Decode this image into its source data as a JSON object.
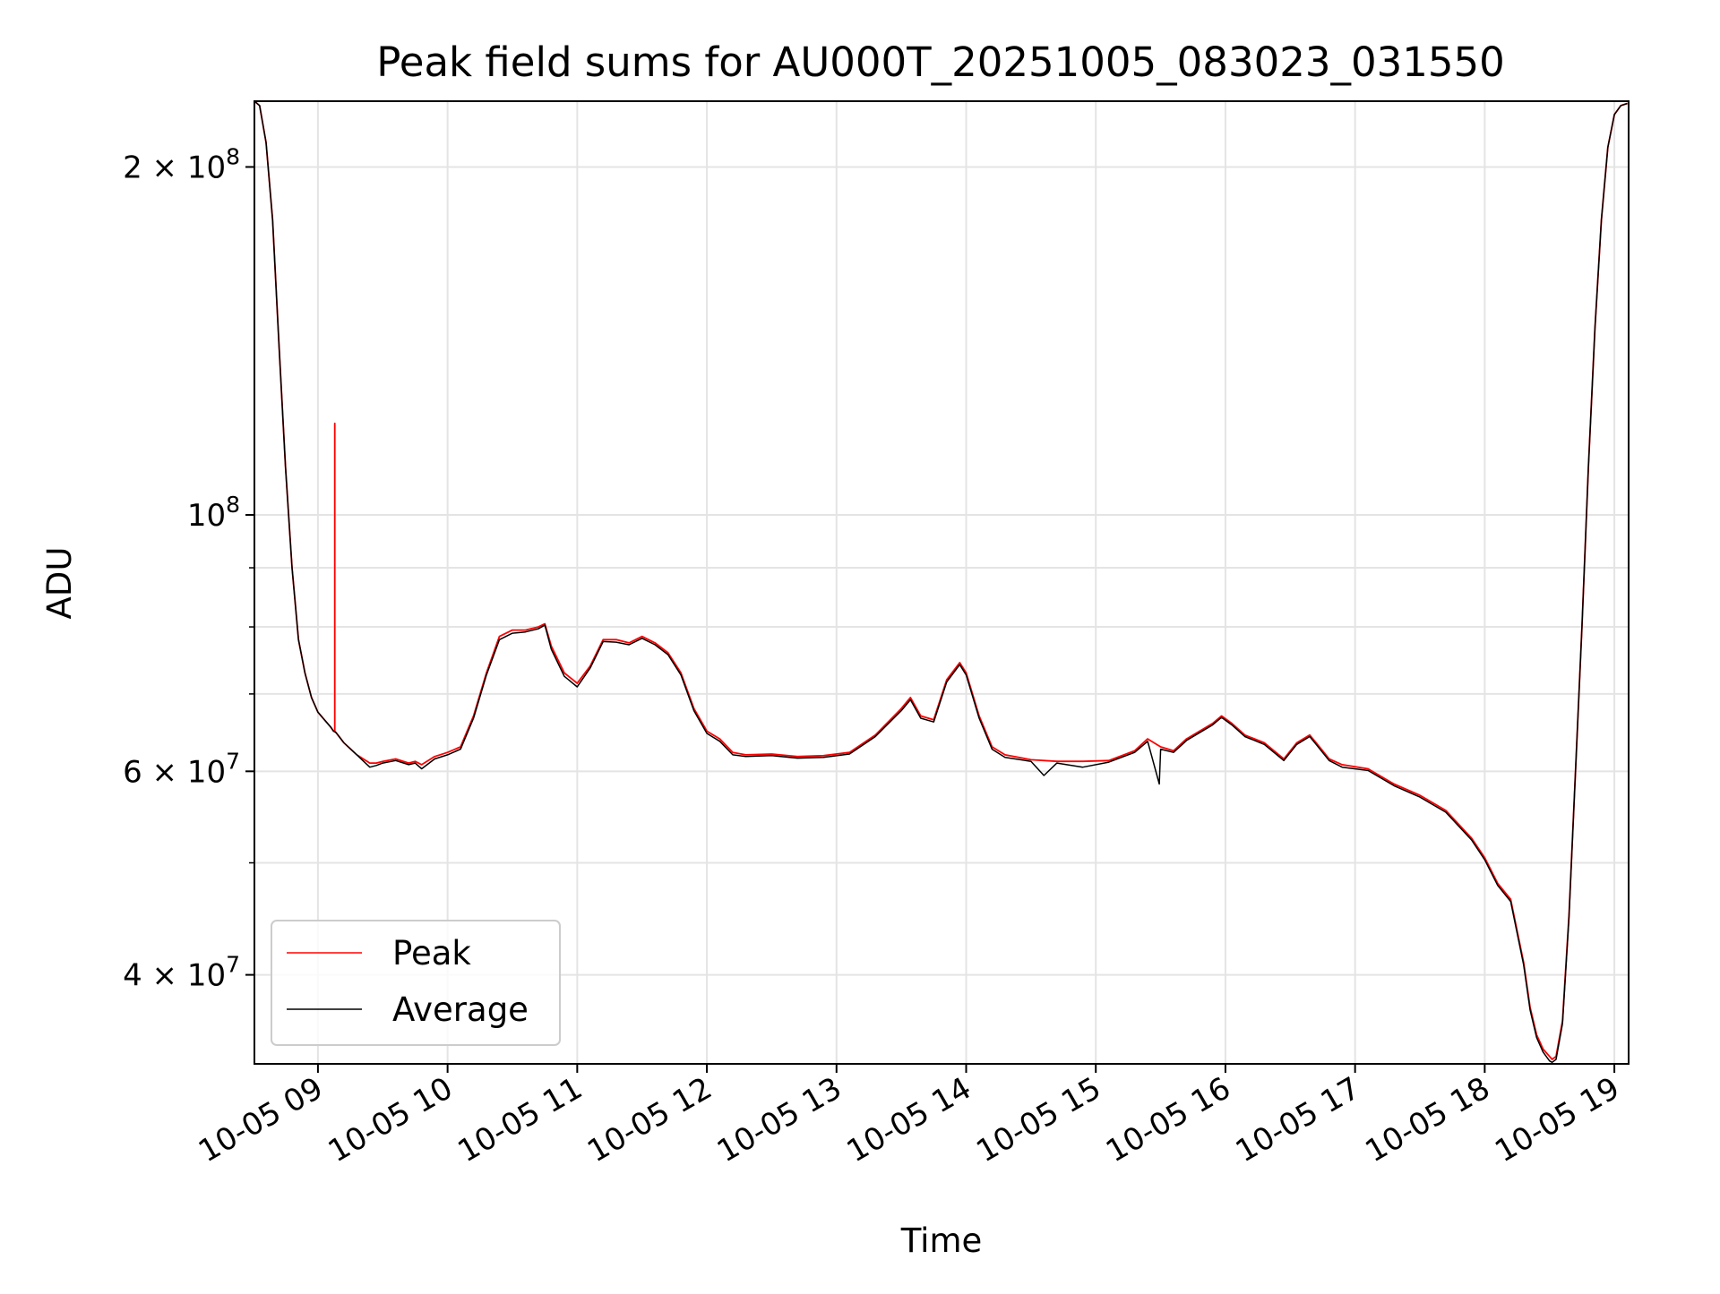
{
  "chart_data": {
    "type": "line",
    "title": "Peak field sums for AU000T_20251005_083023_031550",
    "xlabel": "Time",
    "ylabel": "ADU",
    "y_scale": "log",
    "ylim": [
      33500000,
      228000000
    ],
    "x_unit": "hour of 2025-10-05",
    "xlim": [
      8.51,
      19.11
    ],
    "x_ticks": [
      {
        "value": 9,
        "label": "10-05 09"
      },
      {
        "value": 10,
        "label": "10-05 10"
      },
      {
        "value": 11,
        "label": "10-05 11"
      },
      {
        "value": 12,
        "label": "10-05 12"
      },
      {
        "value": 13,
        "label": "10-05 13"
      },
      {
        "value": 14,
        "label": "10-05 14"
      },
      {
        "value": 15,
        "label": "10-05 15"
      },
      {
        "value": 16,
        "label": "10-05 16"
      },
      {
        "value": 17,
        "label": "10-05 17"
      },
      {
        "value": 18,
        "label": "10-05 18"
      },
      {
        "value": 19,
        "label": "10-05 19"
      }
    ],
    "y_major_ticks": [
      {
        "value": 40000000,
        "mant": "4",
        "exp": "7"
      },
      {
        "value": 60000000,
        "mant": "6",
        "exp": "7"
      },
      {
        "value": 100000000,
        "mant": "",
        "exp": "8"
      },
      {
        "value": 200000000,
        "mant": "2",
        "exp": "8"
      }
    ],
    "y_minor_ticks": [
      50000000,
      70000000,
      80000000,
      90000000
    ],
    "grid": true,
    "legend_position": "lower-left",
    "series": [
      {
        "name": "Peak",
        "color": "#ff0000",
        "x": [
          8.51,
          8.55,
          8.6,
          8.65,
          8.7,
          8.75,
          8.8,
          8.85,
          8.9,
          8.95,
          9.0,
          9.05,
          9.1,
          9.12,
          9.13,
          9.13,
          9.13,
          9.14,
          9.2,
          9.3,
          9.4,
          9.45,
          9.5,
          9.6,
          9.7,
          9.75,
          9.8,
          9.9,
          10.0,
          10.1,
          10.2,
          10.3,
          10.4,
          10.5,
          10.6,
          10.7,
          10.75,
          10.8,
          10.9,
          11.0,
          11.1,
          11.2,
          11.3,
          11.4,
          11.5,
          11.6,
          11.7,
          11.8,
          11.9,
          12.0,
          12.1,
          12.2,
          12.3,
          12.5,
          12.7,
          12.9,
          13.1,
          13.3,
          13.5,
          13.57,
          13.65,
          13.75,
          13.85,
          13.95,
          14.0,
          14.1,
          14.2,
          14.3,
          14.5,
          14.7,
          14.9,
          15.1,
          15.3,
          15.4,
          15.5,
          15.6,
          15.7,
          15.8,
          15.9,
          15.97,
          16.05,
          16.15,
          16.3,
          16.45,
          16.55,
          16.65,
          16.7,
          16.8,
          16.9,
          17.1,
          17.3,
          17.5,
          17.7,
          17.9,
          18.0,
          18.1,
          18.2,
          18.3,
          18.35,
          18.4,
          18.45,
          18.5,
          18.52,
          18.55,
          18.6,
          18.65,
          18.7,
          18.75,
          18.8,
          18.85,
          18.9,
          18.95,
          19.0,
          19.05,
          19.1
        ],
        "y": [
          228000000,
          226000000,
          210000000,
          180000000,
          140000000,
          110000000,
          90000000,
          78000000,
          73000000,
          69500000,
          67500000,
          66500000,
          65500000,
          65000000,
          65000000,
          120000000,
          65000000,
          64800000,
          63500000,
          62000000,
          61000000,
          61000000,
          61200000,
          61500000,
          61000000,
          61200000,
          60800000,
          61800000,
          62300000,
          63000000,
          67000000,
          73000000,
          78500000,
          79500000,
          79500000,
          80000000,
          80500000,
          77000000,
          73000000,
          71500000,
          74000000,
          78000000,
          78000000,
          77500000,
          78500000,
          77500000,
          76000000,
          73000000,
          68000000,
          65000000,
          64000000,
          62300000,
          62000000,
          62100000,
          61800000,
          61900000,
          62300000,
          64500000,
          68000000,
          69500000,
          67000000,
          66500000,
          72000000,
          74500000,
          73000000,
          67000000,
          63000000,
          62000000,
          61400000,
          61200000,
          61200000,
          61300000,
          62500000,
          64000000,
          63000000,
          62500000,
          64000000,
          65000000,
          66000000,
          67000000,
          66000000,
          64500000,
          63500000,
          61500000,
          63500000,
          64500000,
          63500000,
          61500000,
          60800000,
          60300000,
          58500000,
          57200000,
          55500000,
          52500000,
          50500000,
          48000000,
          46500000,
          41000000,
          37500000,
          35500000,
          34500000,
          34000000,
          33800000,
          34000000,
          36500000,
          45000000,
          60000000,
          80000000,
          110000000,
          145000000,
          180000000,
          208000000,
          222000000,
          226000000,
          227000000
        ]
      },
      {
        "name": "Average",
        "color": "#000000",
        "x": [
          8.51,
          8.55,
          8.6,
          8.65,
          8.7,
          8.75,
          8.8,
          8.85,
          8.9,
          8.95,
          9.0,
          9.05,
          9.1,
          9.12,
          9.14,
          9.2,
          9.3,
          9.4,
          9.45,
          9.5,
          9.6,
          9.7,
          9.75,
          9.8,
          9.9,
          10.0,
          10.1,
          10.2,
          10.3,
          10.4,
          10.5,
          10.6,
          10.7,
          10.75,
          10.8,
          10.9,
          11.0,
          11.1,
          11.2,
          11.3,
          11.4,
          11.5,
          11.6,
          11.7,
          11.8,
          11.9,
          12.0,
          12.1,
          12.2,
          12.3,
          12.5,
          12.7,
          12.9,
          13.1,
          13.3,
          13.5,
          13.57,
          13.65,
          13.75,
          13.85,
          13.95,
          14.0,
          14.1,
          14.2,
          14.3,
          14.5,
          14.6,
          14.7,
          14.9,
          15.1,
          15.3,
          15.4,
          15.49,
          15.5,
          15.6,
          15.7,
          15.8,
          15.9,
          15.97,
          16.05,
          16.15,
          16.3,
          16.45,
          16.55,
          16.65,
          16.7,
          16.8,
          16.9,
          17.1,
          17.3,
          17.5,
          17.7,
          17.9,
          18.0,
          18.1,
          18.2,
          18.3,
          18.35,
          18.4,
          18.45,
          18.5,
          18.52,
          18.55,
          18.6,
          18.65,
          18.7,
          18.75,
          18.8,
          18.85,
          18.9,
          18.95,
          19.0,
          19.05,
          19.1
        ],
        "y": [
          228000000,
          226000000,
          210000000,
          180000000,
          140000000,
          110000000,
          90000000,
          78000000,
          73000000,
          69500000,
          67500000,
          66500000,
          65500000,
          65000000,
          64800000,
          63500000,
          62000000,
          60500000,
          60700000,
          61000000,
          61300000,
          60800000,
          61000000,
          60300000,
          61500000,
          62000000,
          62700000,
          66700000,
          72700000,
          78000000,
          79000000,
          79200000,
          79700000,
          80300000,
          76500000,
          72500000,
          71000000,
          73700000,
          77700000,
          77600000,
          77200000,
          78200000,
          77200000,
          75700000,
          72700000,
          67700000,
          64700000,
          63700000,
          62000000,
          61800000,
          61900000,
          61600000,
          61700000,
          62100000,
          64300000,
          67700000,
          69200000,
          66700000,
          66200000,
          71700000,
          74200000,
          72700000,
          66700000,
          62700000,
          61700000,
          61200000,
          59500000,
          61000000,
          60500000,
          61100000,
          62300000,
          63700000,
          58500000,
          62700000,
          62300000,
          63800000,
          64800000,
          65800000,
          66800000,
          65800000,
          64300000,
          63300000,
          61300000,
          63300000,
          64300000,
          63300000,
          61300000,
          60500000,
          60100000,
          58300000,
          57000000,
          55300000,
          52300000,
          50300000,
          47800000,
          46300000,
          40800000,
          37300000,
          35300000,
          34300000,
          33700000,
          33600000,
          33800000,
          36300000,
          44800000,
          60000000,
          80000000,
          110000000,
          145000000,
          180000000,
          208000000,
          222000000,
          226000000,
          227000000
        ]
      }
    ]
  }
}
